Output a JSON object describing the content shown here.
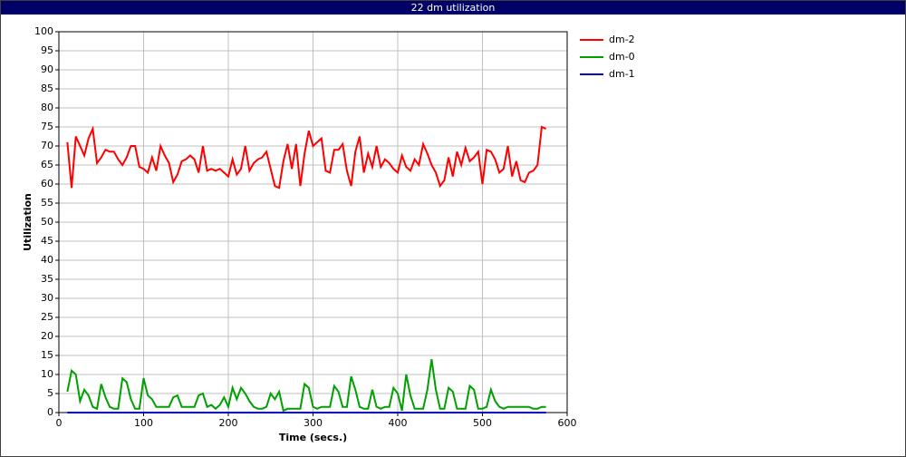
{
  "chart_data": {
    "type": "line",
    "title": "22 dm utilization",
    "x_label": "Time (secs.)",
    "y_label": "Utilization",
    "x": [
      10,
      15,
      20,
      25,
      30,
      35,
      40,
      45,
      50,
      55,
      60,
      65,
      70,
      75,
      80,
      85,
      90,
      95,
      100,
      105,
      110,
      115,
      120,
      125,
      130,
      135,
      140,
      145,
      150,
      155,
      160,
      165,
      170,
      175,
      180,
      185,
      190,
      195,
      200,
      205,
      210,
      215,
      220,
      225,
      230,
      235,
      240,
      245,
      250,
      255,
      260,
      265,
      270,
      275,
      280,
      285,
      290,
      295,
      300,
      305,
      310,
      315,
      320,
      325,
      330,
      335,
      340,
      345,
      350,
      355,
      360,
      365,
      370,
      375,
      380,
      385,
      390,
      395,
      400,
      405,
      410,
      415,
      420,
      425,
      430,
      435,
      440,
      445,
      450,
      455,
      460,
      465,
      470,
      475,
      480,
      485,
      490,
      495,
      500,
      505,
      510,
      515,
      520,
      525,
      530,
      535,
      540,
      545,
      550,
      555,
      560,
      565,
      570,
      575
    ],
    "series": [
      {
        "name": "dm-2",
        "color": "#ff0000",
        "values": [
          71,
          59,
          72.5,
          70,
          67.5,
          72,
          74.5,
          65.5,
          67,
          69,
          68.5,
          68.5,
          66.5,
          65,
          67,
          70,
          70,
          64.5,
          64,
          63,
          67,
          63.5,
          70,
          67.5,
          65.5,
          60.5,
          62.5,
          66,
          66.5,
          67.5,
          66.5,
          63,
          70,
          63.5,
          64,
          63.5,
          64,
          63,
          62,
          66.5,
          62.5,
          64,
          70,
          63.5,
          65.5,
          66.5,
          67,
          68.5,
          64,
          59.5,
          59,
          66,
          70.5,
          64,
          70.5,
          59.5,
          68,
          74,
          70,
          71,
          72,
          63.5,
          63,
          69,
          69,
          70.5,
          63.5,
          59.5,
          68.5,
          72.5,
          63,
          68,
          64.5,
          70,
          64.5,
          66.5,
          65.5,
          64,
          63,
          67.5,
          64.5,
          63.5,
          66.5,
          65,
          70.5,
          68,
          65,
          63,
          59.5,
          61,
          67,
          62,
          68.5,
          65,
          69.5,
          66,
          67,
          68.5,
          60,
          69,
          68.5,
          66.5,
          63,
          64,
          70,
          62,
          66,
          61,
          60.5,
          63,
          63.5,
          65,
          75,
          74.5
        ]
      },
      {
        "name": "dm-0",
        "color": "#00a000",
        "values": [
          5.5,
          11,
          10,
          3,
          6,
          4.5,
          1.5,
          1,
          7.5,
          4,
          1.5,
          1,
          1,
          9,
          8,
          3.5,
          1,
          1,
          9,
          4.5,
          3.5,
          1.5,
          1.5,
          1.5,
          1.5,
          4,
          4.5,
          1.5,
          1.5,
          1.5,
          1.5,
          4.5,
          5,
          1.5,
          2,
          1,
          2,
          4,
          1.5,
          6.5,
          3.5,
          6.5,
          5,
          3,
          1.5,
          1,
          1,
          1.5,
          5,
          3.5,
          5.5,
          0.5,
          1,
          1,
          1,
          1,
          7.5,
          6.5,
          1.5,
          1,
          1.5,
          1.5,
          1.5,
          7,
          5.5,
          1.5,
          1.5,
          9.5,
          6,
          1.5,
          1,
          1,
          6,
          1.5,
          1,
          1.5,
          1.5,
          6.5,
          5,
          0.5,
          10,
          4.5,
          1,
          1,
          1,
          6,
          14,
          6,
          1,
          1,
          6.5,
          5.5,
          1,
          1,
          1,
          7,
          6,
          1,
          1,
          1.5,
          6,
          3,
          1.5,
          1,
          1.5,
          1.5,
          1.5,
          1.5,
          1.5,
          1.5,
          1,
          1,
          1.5,
          1.5
        ]
      },
      {
        "name": "dm-1",
        "color": "#0000c0",
        "values": [
          0,
          0,
          0,
          0,
          0,
          0,
          0,
          0,
          0,
          0,
          0,
          0,
          0,
          0,
          0,
          0,
          0,
          0,
          0,
          0,
          0,
          0,
          0,
          0,
          0,
          0,
          0,
          0,
          0,
          0,
          0,
          0,
          0,
          0,
          0,
          0,
          0,
          0,
          0,
          0,
          0,
          0,
          0,
          0,
          0,
          0,
          0,
          0,
          0,
          0,
          0,
          0,
          0,
          0,
          0,
          0,
          0,
          0,
          0,
          0,
          0,
          0,
          0,
          0,
          0,
          0,
          0,
          0,
          0,
          0,
          0,
          0,
          0,
          0,
          0,
          0,
          0,
          0,
          0,
          0,
          0,
          0,
          0,
          0,
          0,
          0,
          0,
          0,
          0,
          0,
          0,
          0,
          0,
          0,
          0,
          0,
          0,
          0,
          0,
          0,
          0,
          0,
          0,
          0,
          0,
          0,
          0,
          0,
          0,
          0,
          0,
          0,
          0,
          0
        ]
      }
    ],
    "xlim": [
      0,
      600
    ],
    "xticks": [
      0,
      100,
      200,
      300,
      400,
      500,
      600
    ],
    "ylim": [
      0,
      100
    ],
    "yticks": [
      0,
      5,
      10,
      15,
      20,
      25,
      30,
      35,
      40,
      45,
      50,
      55,
      60,
      65,
      70,
      75,
      80,
      85,
      90,
      95,
      100
    ],
    "grid": true,
    "legend": "right"
  }
}
